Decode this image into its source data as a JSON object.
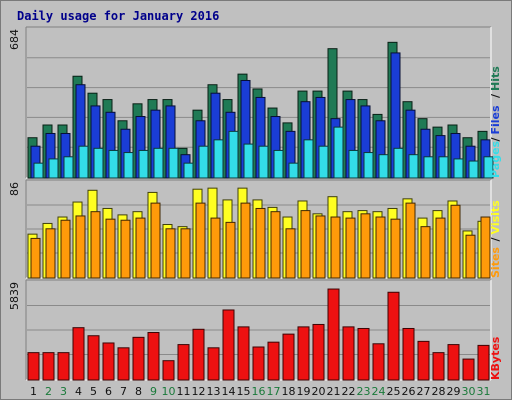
{
  "title": "Daily usage for January 2016",
  "colors": {
    "background": "#c0c0c0",
    "panel": "#c0c0c0",
    "gridline": "#8a8a8a",
    "hits": "#1f7a55",
    "files": "#1a3dd6",
    "pages": "#33dde8",
    "visits": "#ffff22",
    "sites": "#ff9a0a",
    "kbytes": "#ee1111",
    "weekend_day_label": "#1a7a3a",
    "weekday_label": "#111111",
    "title": "#00008b"
  },
  "chart_data": [
    {
      "type": "bar",
      "panel": "hits-files-pages",
      "ylim": [
        0,
        684
      ],
      "y_tick_label": "684",
      "grid": true,
      "legend": "right side, vertical",
      "legend_parts": [
        {
          "text": "Pages",
          "color": "#33dde8"
        },
        {
          "text": "/",
          "color": "#111111"
        },
        {
          "text": "Files",
          "color": "#1a3dd6"
        },
        {
          "text": "/",
          "color": "#111111"
        },
        {
          "text": "Hits",
          "color": "#1f7a55"
        }
      ],
      "categories": [
        "1",
        "2",
        "3",
        "4",
        "5",
        "6",
        "7",
        "8",
        "9",
        "10",
        "11",
        "12",
        "13",
        "14",
        "15",
        "16",
        "17",
        "18",
        "19",
        "20",
        "21",
        "22",
        "23",
        "24",
        "25",
        "26",
        "27",
        "28",
        "29",
        "30",
        "31"
      ],
      "series": [
        {
          "name": "Hits",
          "values": [
            190,
            250,
            250,
            480,
            400,
            370,
            270,
            350,
            370,
            370,
            140,
            320,
            440,
            370,
            490,
            420,
            330,
            260,
            410,
            410,
            610,
            410,
            370,
            300,
            640,
            360,
            280,
            240,
            250,
            190,
            220
          ]
        },
        {
          "name": "Files",
          "values": [
            150,
            210,
            210,
            440,
            340,
            310,
            230,
            290,
            320,
            340,
            110,
            270,
            400,
            310,
            460,
            380,
            290,
            220,
            360,
            380,
            280,
            370,
            340,
            270,
            590,
            320,
            230,
            200,
            210,
            150,
            180
          ]
        },
        {
          "name": "Pages",
          "values": [
            70,
            90,
            100,
            150,
            140,
            130,
            120,
            130,
            140,
            140,
            70,
            150,
            180,
            220,
            160,
            150,
            130,
            70,
            180,
            150,
            240,
            130,
            120,
            110,
            140,
            110,
            100,
            100,
            90,
            80,
            100
          ]
        }
      ]
    },
    {
      "type": "bar",
      "panel": "sites-visits",
      "ylim": [
        0,
        86
      ],
      "y_tick_label": "86",
      "grid": true,
      "legend": "right side, vertical",
      "legend_parts": [
        {
          "text": "Sites",
          "color": "#ff9a0a"
        },
        {
          "text": "/",
          "color": "#111111"
        },
        {
          "text": "Visits",
          "color": "#ffff22"
        }
      ],
      "categories": [
        "1",
        "2",
        "3",
        "4",
        "5",
        "6",
        "7",
        "8",
        "9",
        "10",
        "11",
        "12",
        "13",
        "14",
        "15",
        "16",
        "17",
        "18",
        "19",
        "20",
        "21",
        "22",
        "23",
        "24",
        "25",
        "26",
        "27",
        "28",
        "29",
        "30",
        "31"
      ],
      "series": [
        {
          "name": "Visits",
          "values": [
            41,
            51,
            57,
            71,
            82,
            65,
            59,
            62,
            80,
            50,
            48,
            83,
            84,
            73,
            84,
            73,
            66,
            57,
            72,
            60,
            76,
            62,
            63,
            62,
            65,
            74,
            56,
            63,
            72,
            44,
            53
          ]
        },
        {
          "name": "Sites",
          "values": [
            37,
            46,
            54,
            58,
            62,
            55,
            54,
            56,
            70,
            46,
            46,
            70,
            56,
            52,
            70,
            65,
            62,
            46,
            63,
            58,
            57,
            56,
            60,
            57,
            55,
            70,
            48,
            56,
            68,
            40,
            57
          ]
        }
      ]
    },
    {
      "type": "bar",
      "panel": "kbytes",
      "ylim": [
        0,
        5839
      ],
      "y_tick_label": "5839",
      "grid": true,
      "legend": "right side, vertical",
      "legend_parts": [
        {
          "text": "KBytes",
          "color": "#ee1111"
        }
      ],
      "categories": [
        "1",
        "2",
        "3",
        "4",
        "5",
        "6",
        "7",
        "8",
        "9",
        "10",
        "11",
        "12",
        "13",
        "14",
        "15",
        "16",
        "17",
        "18",
        "19",
        "20",
        "21",
        "22",
        "23",
        "24",
        "25",
        "26",
        "27",
        "28",
        "29",
        "30",
        "31"
      ],
      "series": [
        {
          "name": "KBytes",
          "values": [
            1700,
            1700,
            1700,
            3250,
            2750,
            2300,
            2000,
            2650,
            2950,
            1200,
            2200,
            3150,
            2000,
            4350,
            3300,
            2050,
            2350,
            2850,
            3300,
            3450,
            5650,
            3300,
            3200,
            2250,
            5450,
            3200,
            2400,
            1700,
            2200,
            1300,
            2150
          ]
        }
      ]
    }
  ],
  "x_axis": {
    "labels": [
      "1",
      "2",
      "3",
      "4",
      "5",
      "6",
      "7",
      "8",
      "9",
      "10",
      "11",
      "12",
      "13",
      "14",
      "15",
      "16",
      "17",
      "18",
      "19",
      "20",
      "21",
      "22",
      "23",
      "24",
      "25",
      "26",
      "27",
      "28",
      "29",
      "30",
      "31"
    ],
    "weekend_days": [
      "2",
      "3",
      "9",
      "10",
      "16",
      "17",
      "23",
      "24",
      "30",
      "31"
    ]
  }
}
